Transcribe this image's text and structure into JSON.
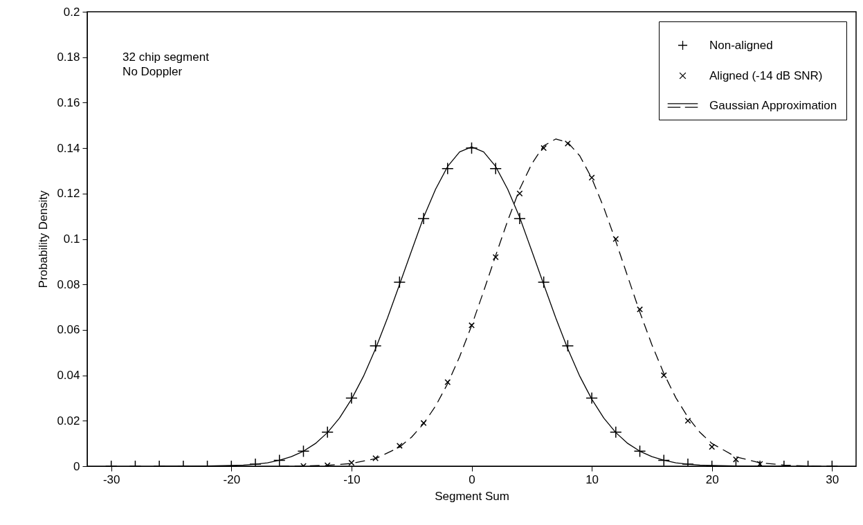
{
  "chart_data": {
    "type": "scatter",
    "xlabel": "Segment Sum",
    "ylabel": "Probability Density",
    "annotations": [
      "32 chip segment",
      "No Doppler"
    ],
    "xlim": [
      -32,
      32
    ],
    "xticks": [
      -30,
      -20,
      -10,
      0,
      10,
      20,
      30
    ],
    "ylim": [
      0,
      0.2
    ],
    "yticks": [
      0,
      0.02,
      0.04,
      0.06,
      0.08,
      0.1,
      0.12,
      0.14,
      0.16,
      0.18,
      0.2
    ],
    "grid": false,
    "legend": "top right",
    "series": [
      {
        "name": "Non-aligned",
        "marker": "cross",
        "color": "#000000",
        "x": [
          -30,
          -28,
          -26,
          -24,
          -22,
          -20,
          -18,
          -16,
          -14,
          -12,
          -10,
          -8,
          -6,
          -4,
          -2,
          0,
          2,
          4,
          6,
          8,
          10,
          12,
          14,
          16,
          18,
          20,
          22,
          24,
          26,
          28,
          30
        ],
        "values": [
          0,
          0,
          0,
          0,
          0,
          0,
          0.0009,
          0.0026,
          0.0066,
          0.015,
          0.03,
          0.053,
          0.081,
          0.109,
          0.131,
          0.14,
          0.131,
          0.109,
          0.081,
          0.053,
          0.03,
          0.015,
          0.0066,
          0.0026,
          0.0009,
          0,
          0,
          0,
          0,
          0,
          0
        ]
      },
      {
        "name": "Aligned (-14 dB SNR)",
        "marker": "x",
        "color": "#000000",
        "x": [
          -14,
          -12,
          -10,
          -8,
          -6,
          -4,
          -2,
          0,
          2,
          4,
          6,
          8,
          10,
          12,
          14,
          16,
          18,
          20,
          22,
          24
        ],
        "values": [
          0.0001,
          0.0004,
          0.0015,
          0.0035,
          0.009,
          0.019,
          0.037,
          0.062,
          0.092,
          0.12,
          0.14,
          0.142,
          0.127,
          0.1,
          0.069,
          0.04,
          0.02,
          0.0085,
          0.003,
          0.001
        ]
      },
      {
        "name": "Gaussian Approximation",
        "type": "line",
        "line_style": "solid",
        "color": "#000000",
        "x": [
          -26,
          -24,
          -22,
          -20,
          -19,
          -18,
          -17,
          -16,
          -15,
          -14,
          -13,
          -12,
          -11,
          -10,
          -9,
          -8,
          -7,
          -6,
          -5,
          -4,
          -3,
          -2,
          -1,
          0,
          1,
          2,
          3,
          4,
          5,
          6,
          7,
          8,
          9,
          10,
          11,
          12,
          13,
          14,
          15,
          16,
          17,
          18,
          19,
          20,
          22,
          24,
          26
        ],
        "values": [
          0,
          0,
          0.0001,
          0.0003,
          0.0005,
          0.0009,
          0.0015,
          0.0026,
          0.0042,
          0.0066,
          0.01,
          0.0148,
          0.0212,
          0.0295,
          0.0396,
          0.0517,
          0.0653,
          0.08,
          0.0948,
          0.1095,
          0.1219,
          0.1319,
          0.1383,
          0.1405,
          0.1383,
          0.1319,
          0.1219,
          0.1095,
          0.0948,
          0.08,
          0.0653,
          0.0517,
          0.0396,
          0.0295,
          0.0212,
          0.0148,
          0.01,
          0.0066,
          0.0042,
          0.0026,
          0.0015,
          0.0009,
          0.0005,
          0.0003,
          0.0001,
          0,
          0
        ]
      },
      {
        "type": "line",
        "line_style": "dashed",
        "color": "#000000",
        "x": [
          -16,
          -14,
          -12,
          -10,
          -8,
          -6,
          -5,
          -4,
          -3,
          -2,
          -1,
          0,
          1,
          2,
          3,
          4,
          5,
          6,
          7,
          8,
          9,
          10,
          11,
          12,
          13,
          14,
          15,
          16,
          17,
          18,
          19,
          20,
          22,
          24,
          26,
          28,
          30
        ],
        "values": [
          0,
          0.0001,
          0.0004,
          0.0012,
          0.0033,
          0.0084,
          0.0128,
          0.0187,
          0.0265,
          0.0363,
          0.0482,
          0.0619,
          0.077,
          0.0927,
          0.108,
          0.122,
          0.133,
          0.141,
          0.144,
          0.1425,
          0.1366,
          0.1267,
          0.1138,
          0.099,
          0.0833,
          0.0678,
          0.0535,
          0.0408,
          0.0301,
          0.0216,
          0.0149,
          0.01,
          0.0041,
          0.0015,
          0.0005,
          0.0001,
          0
        ]
      }
    ]
  }
}
